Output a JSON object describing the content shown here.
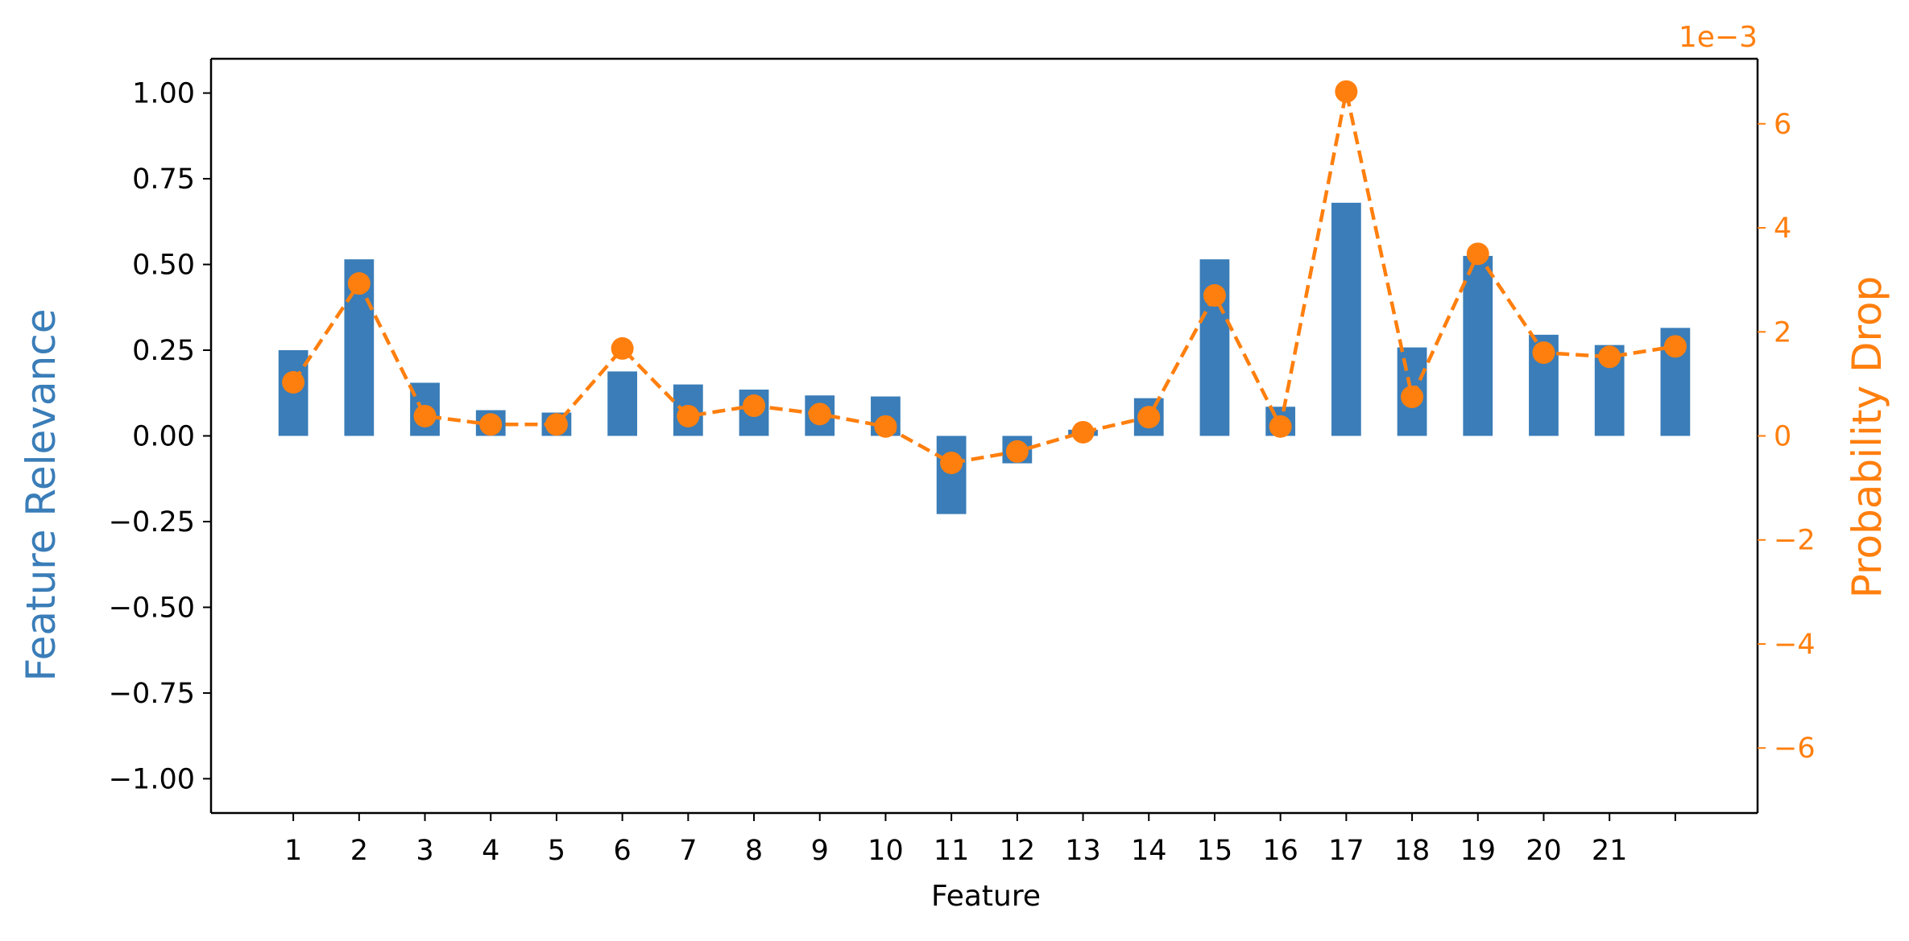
{
  "colors": {
    "bars": "#3a7db8",
    "line": "#ff7f0e",
    "left_axis_label": "#3a7db8",
    "right_axis": "#ff7f0e",
    "axes": "#000000"
  },
  "chart_data": {
    "type": "bar",
    "xlabel": "Feature",
    "ylabel_left": "Feature Relevance",
    "ylabel_right": "Probability Drop",
    "right_axis_offset_text": "1e−3",
    "ylim_left": [
      -1.1,
      1.1
    ],
    "ylim_right": [
      -7.25,
      7.25
    ],
    "yticks_left": [
      "1.00",
      "0.75",
      "0.50",
      "0.25",
      "0.00",
      "−0.25",
      "−0.50",
      "−0.75",
      "−1.00"
    ],
    "yticks_left_values": [
      1.0,
      0.75,
      0.5,
      0.25,
      0.0,
      -0.25,
      -0.5,
      -0.75,
      -1.0
    ],
    "yticks_right": [
      "6",
      "4",
      "2",
      "0",
      "−2",
      "−4",
      "−6"
    ],
    "yticks_right_values": [
      6,
      4,
      2,
      0,
      -2,
      -4,
      -6
    ],
    "xlim": [
      -0.25,
      23.25
    ],
    "xticks": [
      "1",
      "2",
      "3",
      "4",
      "5",
      "6",
      "7",
      "8",
      "9",
      "10",
      "11",
      "12",
      "13",
      "14",
      "15",
      "16",
      "17",
      "18",
      "19",
      "20",
      "21",
      ""
    ],
    "bar_positions": [
      1,
      2,
      3,
      4,
      5,
      6,
      7,
      8,
      9,
      10,
      11,
      12,
      13,
      14,
      15,
      16,
      17,
      18,
      19,
      20,
      21,
      22
    ],
    "series": [
      {
        "kind": "bar",
        "axis": "left",
        "values": [
          0.25,
          0.515,
          0.155,
          0.075,
          0.068,
          0.188,
          0.15,
          0.135,
          0.118,
          0.115,
          -0.228,
          -0.08,
          0.018,
          0.11,
          0.515,
          0.085,
          0.68,
          0.258,
          0.525,
          0.295,
          0.265,
          0.315
        ]
      },
      {
        "kind": "line",
        "axis": "right",
        "style": "dashed with circle markers",
        "values": [
          1.03,
          2.93,
          0.38,
          0.22,
          0.22,
          1.68,
          0.38,
          0.58,
          0.42,
          0.18,
          -0.52,
          -0.3,
          0.07,
          0.36,
          2.7,
          0.18,
          6.62,
          0.75,
          3.5,
          1.6,
          1.52,
          1.72
        ]
      }
    ]
  }
}
